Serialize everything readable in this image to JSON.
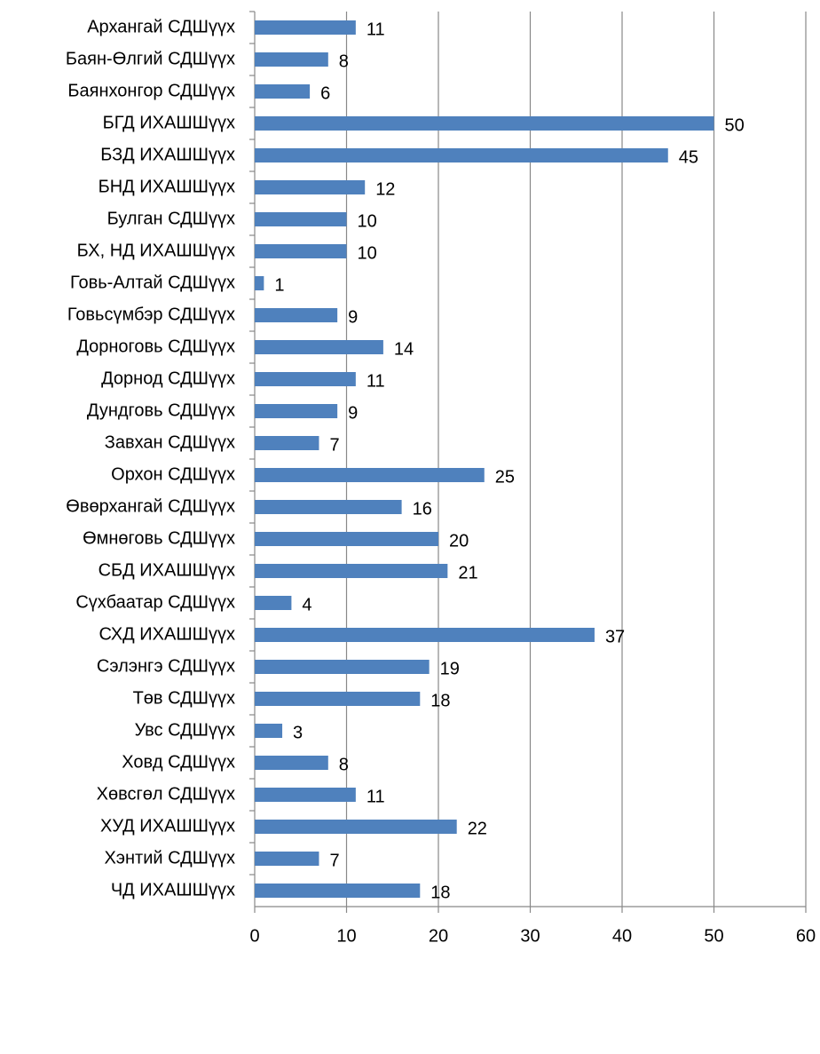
{
  "chart_data": {
    "type": "bar",
    "orientation": "horizontal",
    "categories": [
      "Архангай СДШүүх",
      "Баян-Өлгий СДШүүх",
      "Баянхонгор СДШүүх",
      "БГД ИХАШШүүх",
      "БЗД ИХАШШүүх",
      "БНД ИХАШШүүх",
      "Булган СДШүүх",
      "БХ, НД ИХАШШүүх",
      "Говь-Алтай СДШүүх",
      "Говьсүмбэр СДШүүх",
      "Дорноговь СДШүүх",
      "Дорнод СДШүүх",
      "Дундговь СДШүүх",
      "Завхан СДШүүх",
      "Орхон СДШүүх",
      "Өвөрхангай СДШүүх",
      "Өмнөговь СДШүүх",
      "СБД ИХАШШүүх",
      "Сүхбаатар СДШүүх",
      "СХД ИХАШШүүх",
      "Сэлэнгэ СДШүүх",
      "Төв СДШүүх",
      "Увс СДШүүх",
      "Ховд СДШүүх",
      "Хөвсгөл СДШүүх",
      "ХУД ИХАШШүүх",
      "Хэнтий СДШүүх",
      "ЧД ИХАШШүүх"
    ],
    "values": [
      11,
      8,
      6,
      50,
      45,
      12,
      10,
      10,
      1,
      9,
      14,
      11,
      9,
      7,
      25,
      16,
      20,
      21,
      4,
      37,
      19,
      18,
      3,
      8,
      11,
      22,
      7,
      18
    ],
    "color": "#4f81bd",
    "xlim": [
      0,
      60
    ],
    "xticks": [
      0,
      10,
      20,
      30,
      40,
      50,
      60
    ],
    "grid": true
  }
}
